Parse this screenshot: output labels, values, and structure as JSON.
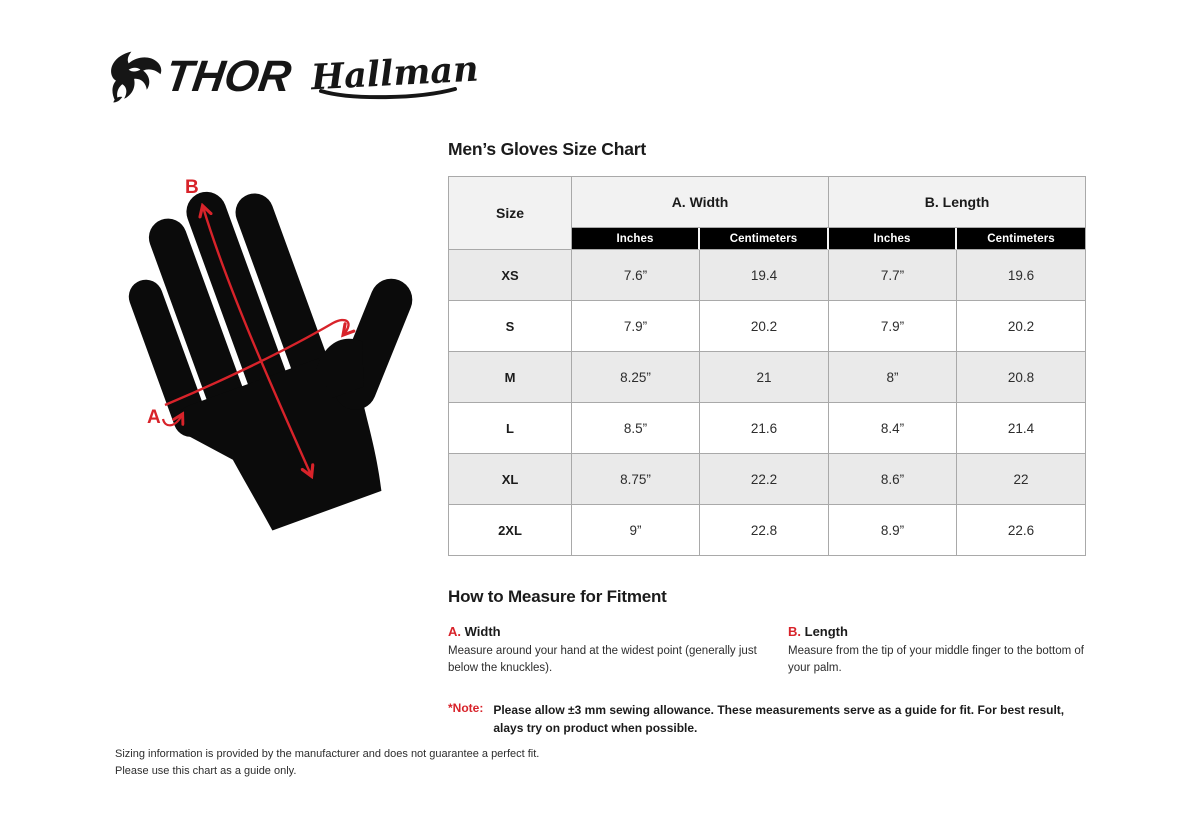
{
  "brand": {
    "thor": "THOR",
    "hallman": "Hallman"
  },
  "size_chart": {
    "title": "Men’s Gloves Size Chart",
    "columns": {
      "size": "Size",
      "width_group": "A. Width",
      "length_group": "B. Length",
      "width_inches": "Inches",
      "width_centimeters": "Centimeters",
      "length_inches": "Inches",
      "length_centimeters": "Centimeters"
    }
  },
  "chart_data": {
    "type": "table",
    "title": "Men’s Gloves Size Chart",
    "columns": [
      "Size",
      "A. Width Inches",
      "A. Width Centimeters",
      "B. Length Inches",
      "B. Length Centimeters"
    ],
    "rows": [
      [
        "XS",
        "7.6”",
        "19.4",
        "7.7”",
        "19.6"
      ],
      [
        "S",
        "7.9”",
        "20.2",
        "7.9”",
        "20.2"
      ],
      [
        "M",
        "8.25”",
        "21",
        "8”",
        "20.8"
      ],
      [
        "L",
        "8.5”",
        "21.6",
        "8.4”",
        "21.4"
      ],
      [
        "XL",
        "8.75”",
        "22.2",
        "8.6”",
        "22"
      ],
      [
        "2XL",
        "9”",
        "22.8",
        "8.9”",
        "22.6"
      ]
    ]
  },
  "figure": {
    "label_a": "A",
    "label_b": "B"
  },
  "how_to_measure": {
    "title": "How to Measure for Fitment",
    "items": [
      {
        "letter": "A.",
        "name": "Width",
        "description": "Measure around your hand at the widest point (generally just below the knuckles)."
      },
      {
        "letter": "B.",
        "name": "Length",
        "description": "Measure from the tip of your middle finger to the bottom of your palm."
      }
    ],
    "note_label": "*Note:",
    "note_text": "Please allow ±3 mm sewing allowance. These measurements serve as a guide for fit. For best result, alays try on product when possible."
  },
  "footer": {
    "line1": "Sizing information is provided by the manufacturer and does not guarantee a perfect fit.",
    "line2": "Please use this chart as a guide only."
  },
  "colors": {
    "accent_red": "#d8232a",
    "header_bg": "#f2f2f2",
    "row_alt_bg": "#eaeaea",
    "table_border": "#a9a9a9",
    "subheader_bg": "#000000",
    "ink": "#1b1b1b"
  }
}
